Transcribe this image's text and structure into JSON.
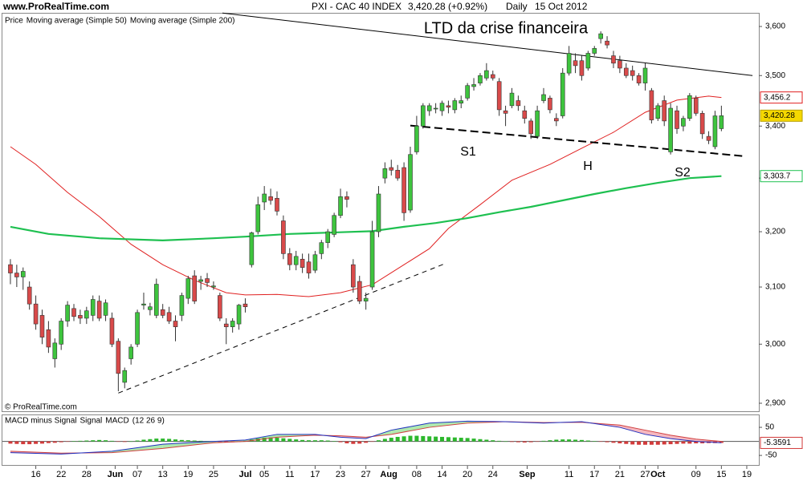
{
  "header": {
    "site": "www.ProRealTime.com",
    "instrument": "PXI - CAC 40 INDEX",
    "quote": "3,420.28 (+0.92%)",
    "period": "Daily",
    "date": "15 Oct 2012"
  },
  "copyright": "© ProRealTime.com",
  "chart_data": [
    {
      "type": "candlestick",
      "legend_title": "Price",
      "log_scale": true,
      "xlim": [
        -1.26,
        117.9
      ],
      "ylim": [
        2888,
        3630
      ],
      "yticks": [
        {
          "value": 3600,
          "label": "3,600"
        },
        {
          "value": 3500,
          "label": "3,500"
        },
        {
          "value": 3400,
          "label": "3,400"
        },
        {
          "value": 3300,
          "label": "3,300"
        },
        {
          "value": 3200,
          "label": "3,200"
        },
        {
          "value": 3100,
          "label": "3,100"
        },
        {
          "value": 3000,
          "label": "3,000"
        },
        {
          "value": 2900,
          "label": "2,900"
        }
      ],
      "xticks": [
        {
          "value": 4,
          "label": "16"
        },
        {
          "value": 8,
          "label": "22"
        },
        {
          "value": 12,
          "label": "28"
        },
        {
          "value": 16.5,
          "label": "Jun"
        },
        {
          "value": 20,
          "label": "07"
        },
        {
          "value": 24,
          "label": "13"
        },
        {
          "value": 28,
          "label": "19"
        },
        {
          "value": 32,
          "label": "25"
        },
        {
          "value": 37,
          "label": "Jul"
        },
        {
          "value": 40,
          "label": "05"
        },
        {
          "value": 44,
          "label": "11"
        },
        {
          "value": 48,
          "label": "17"
        },
        {
          "value": 52,
          "label": "23"
        },
        {
          "value": 56,
          "label": "27"
        },
        {
          "value": 59.6,
          "label": "Aug"
        },
        {
          "value": 64,
          "label": "08"
        },
        {
          "value": 68,
          "label": "14"
        },
        {
          "value": 72,
          "label": "20"
        },
        {
          "value": 76,
          "label": "24"
        },
        {
          "value": 81.4,
          "label": "Sep"
        },
        {
          "value": 88,
          "label": "11"
        },
        {
          "value": 92,
          "label": "17"
        },
        {
          "value": 96,
          "label": "21"
        },
        {
          "value": 100,
          "label": "27"
        },
        {
          "value": 102,
          "label": "Oct"
        },
        {
          "value": 108,
          "label": "09"
        },
        {
          "value": 112,
          "label": "15"
        },
        {
          "value": 116,
          "label": "19"
        }
      ],
      "up_color": "#3ec43e",
      "down_color": "#d94a4a",
      "open": [
        3140,
        3125,
        3118,
        3100,
        3070,
        3050,
        3025,
        2975,
        3000,
        3040,
        3062,
        3050,
        3045,
        3050,
        3075,
        3050,
        3045,
        3005,
        2935,
        2975,
        3000,
        3068,
        3060,
        3050,
        3060,
        3055,
        3040,
        3050,
        3080,
        3120,
        3110,
        3115,
        3100,
        3085,
        3035,
        3030,
        3035,
        3070,
        3140,
        3200,
        3255,
        3265,
        3262,
        3220,
        3160,
        3140,
        3150,
        3145,
        3130,
        3160,
        3180,
        3195,
        3230,
        3265,
        3140,
        3110,
        3075,
        3100,
        3200,
        3300,
        3320,
        3315,
        3320,
        3240,
        3350,
        3400,
        3430,
        3435,
        3430,
        3440,
        3432,
        3445,
        3455,
        3478,
        3485,
        3495,
        3502,
        3488,
        3430,
        3440,
        3450,
        3430,
        3410,
        3380,
        3450,
        3455,
        3415,
        3420,
        3505,
        3530,
        3530,
        3515,
        3545,
        3575,
        3570,
        3540,
        3530,
        3515,
        3510,
        3500,
        3485,
        3470,
        3415,
        3450,
        3350,
        3430,
        3400,
        3415,
        3455,
        3425,
        3380,
        3360,
        3395
      ],
      "high": [
        3150,
        3140,
        3135,
        3110,
        3085,
        3060,
        3040,
        3010,
        3045,
        3075,
        3070,
        3060,
        3065,
        3085,
        3085,
        3078,
        3055,
        3010,
        2960,
        3000,
        3060,
        3090,
        3072,
        3115,
        3070,
        3065,
        3050,
        3090,
        3120,
        3130,
        3120,
        3125,
        3110,
        3090,
        3045,
        3045,
        3070,
        3080,
        3200,
        3265,
        3285,
        3280,
        3275,
        3230,
        3170,
        3165,
        3160,
        3160,
        3165,
        3185,
        3205,
        3235,
        3280,
        3275,
        3150,
        3120,
        3090,
        3220,
        3285,
        3330,
        3335,
        3325,
        3330,
        3360,
        3420,
        3445,
        3445,
        3445,
        3450,
        3450,
        3455,
        3460,
        3485,
        3495,
        3505,
        3525,
        3510,
        3495,
        3440,
        3475,
        3460,
        3440,
        3415,
        3440,
        3475,
        3460,
        3425,
        3515,
        3560,
        3545,
        3540,
        3550,
        3560,
        3590,
        3580,
        3550,
        3540,
        3525,
        3520,
        3505,
        3525,
        3475,
        3445,
        3460,
        3445,
        3440,
        3420,
        3465,
        3460,
        3430,
        3390,
        3430,
        3440
      ],
      "low": [
        3105,
        3100,
        3095,
        3060,
        3025,
        3000,
        2985,
        2960,
        2990,
        3030,
        3040,
        3035,
        3035,
        3040,
        3040,
        3040,
        2995,
        2920,
        2925,
        2965,
        2995,
        3060,
        3050,
        3045,
        3045,
        3035,
        3005,
        3040,
        3070,
        3070,
        3095,
        3100,
        3095,
        3040,
        3000,
        3020,
        3025,
        3055,
        3135,
        3195,
        3240,
        3250,
        3230,
        3150,
        3130,
        3130,
        3125,
        3115,
        3125,
        3150,
        3170,
        3190,
        3225,
        3245,
        3090,
        3070,
        3060,
        3095,
        3190,
        3290,
        3305,
        3295,
        3220,
        3235,
        3345,
        3395,
        3420,
        3425,
        3420,
        3425,
        3425,
        3435,
        3450,
        3470,
        3480,
        3490,
        3490,
        3420,
        3400,
        3435,
        3430,
        3405,
        3375,
        3375,
        3445,
        3425,
        3400,
        3415,
        3500,
        3505,
        3490,
        3510,
        3540,
        3565,
        3555,
        3515,
        3505,
        3495,
        3490,
        3480,
        3470,
        3405,
        3410,
        3400,
        3345,
        3385,
        3390,
        3410,
        3420,
        3375,
        3365,
        3355,
        3390
      ],
      "close": [
        3125,
        3118,
        3128,
        3070,
        3035,
        3012,
        2995,
        3002,
        3040,
        3068,
        3048,
        3045,
        3058,
        3078,
        3045,
        3072,
        3000,
        2950,
        2955,
        2995,
        3055,
        3070,
        3065,
        3105,
        3050,
        3040,
        3030,
        3085,
        3115,
        3075,
        3113,
        3108,
        3102,
        3045,
        3030,
        3040,
        3068,
        3065,
        3198,
        3250,
        3270,
        3258,
        3238,
        3160,
        3140,
        3155,
        3135,
        3125,
        3158,
        3180,
        3200,
        3230,
        3265,
        3260,
        3100,
        3075,
        3080,
        3200,
        3270,
        3318,
        3315,
        3300,
        3235,
        3345,
        3400,
        3440,
        3440,
        3435,
        3445,
        3437,
        3450,
        3450,
        3480,
        3482,
        3500,
        3510,
        3495,
        3432,
        3425,
        3465,
        3440,
        3415,
        3385,
        3430,
        3462,
        3432,
        3410,
        3505,
        3545,
        3520,
        3500,
        3545,
        3555,
        3585,
        3562,
        3525,
        3515,
        3500,
        3500,
        3485,
        3515,
        3412,
        3440,
        3410,
        3435,
        3395,
        3415,
        3460,
        3425,
        3385,
        3372,
        3420,
        3420.28
      ],
      "close_label": "3,420.28",
      "series": [
        {
          "name": "Moving average (Simple 50)",
          "color": "#e02020",
          "x": [
            0,
            4,
            9,
            14,
            19,
            24,
            29,
            34,
            37,
            42,
            47,
            52,
            57,
            62,
            66,
            69,
            74,
            79,
            85,
            90,
            95,
            100,
            105,
            110,
            112
          ],
          "values": [
            3360,
            3326,
            3273,
            3228,
            3177,
            3140,
            3112,
            3090,
            3086,
            3087,
            3083,
            3090,
            3104,
            3140,
            3169,
            3206,
            3250,
            3296,
            3326,
            3357,
            3388,
            3427,
            3451,
            3459,
            3456.2
          ],
          "value_label": "3,456.2"
        },
        {
          "name": "Moving average (Simple 200)",
          "color": "#1ec050",
          "x": [
            0,
            6,
            14,
            24,
            32,
            37,
            44,
            52,
            57,
            62,
            67,
            72,
            77,
            82,
            87,
            92,
            97,
            102,
            107,
            112
          ],
          "values": [
            3209,
            3196,
            3188,
            3184,
            3188,
            3191,
            3196,
            3199,
            3201,
            3209,
            3216,
            3225,
            3236,
            3246,
            3258,
            3270,
            3281,
            3291,
            3300,
            3303.7
          ],
          "value_label": "3,303.7"
        }
      ],
      "trendlines": [
        {
          "x": [
            33.4,
            116.9
          ],
          "y": [
            3628,
            3500
          ],
          "style": "solid"
        },
        {
          "x": [
            63,
            115.4
          ],
          "y": [
            3401,
            3342
          ],
          "style": "dashed"
        },
        {
          "x": [
            17,
            68.7
          ],
          "y": [
            2917,
            3143
          ],
          "style": "dashed"
        }
      ],
      "annotations": [
        "LTD da crise financeira",
        "S1",
        "H",
        "S2"
      ]
    },
    {
      "type": "macd",
      "params": "(12 26 9)",
      "xlim": [
        -1.26,
        117.9
      ],
      "ylim": [
        -84,
        93
      ],
      "yticks": [
        50,
        -50
      ],
      "histogram": {
        "name": "MACD minus Signal",
        "pos_color": "#2db82d",
        "neg_color": "#d23a3a",
        "values": [
          -8,
          -9,
          -10,
          -10,
          -9,
          -8,
          -6,
          -5,
          -3,
          -1,
          1,
          2,
          3,
          4,
          5,
          4,
          2,
          -1,
          -2,
          0,
          3,
          6,
          8,
          10,
          10,
          9,
          7,
          5,
          4,
          3,
          2,
          1,
          -1,
          -2,
          -3,
          -3,
          -2,
          2,
          6,
          10,
          13,
          14,
          13,
          11,
          9,
          7,
          5,
          4,
          4,
          4,
          3,
          1,
          -3,
          -7,
          -9,
          -8,
          -5,
          -1,
          4,
          9,
          13,
          16,
          18,
          20,
          20,
          19,
          18,
          17,
          16,
          15,
          14,
          13,
          12,
          10,
          8,
          6,
          4,
          2,
          0,
          -2,
          -3,
          -4,
          -3,
          -1,
          2,
          4,
          6,
          7,
          7,
          6,
          5,
          3,
          1,
          -1,
          -3,
          -5,
          -7,
          -9,
          -11,
          -12,
          -12,
          -12,
          -12,
          -11,
          -10,
          -9,
          -8,
          -8,
          -7,
          -7,
          -6,
          -6,
          -5.3591
        ],
        "value_label": "-5.3591"
      },
      "series": [
        {
          "name": "Signal",
          "color": "#d04040",
          "x": [
            0,
            8,
            16,
            24,
            32,
            37,
            42,
            48,
            52,
            56,
            60,
            66,
            72,
            78,
            84,
            90,
            96,
            100,
            104,
            108,
            112
          ],
          "values": [
            -35,
            -42,
            -40,
            -25,
            -5,
            0,
            15,
            22,
            20,
            15,
            25,
            50,
            65,
            70,
            67,
            68,
            58,
            40,
            22,
            8,
            0
          ]
        },
        {
          "name": "MACD",
          "color": "#2030c0",
          "x": [
            0,
            8,
            16,
            24,
            32,
            37,
            42,
            48,
            52,
            56,
            60,
            66,
            72,
            78,
            84,
            90,
            96,
            100,
            104,
            108,
            112
          ],
          "values": [
            -40,
            -45,
            -35,
            -10,
            0,
            5,
            25,
            25,
            15,
            10,
            40,
            65,
            72,
            70,
            65,
            70,
            50,
            25,
            10,
            0,
            -5
          ]
        }
      ]
    }
  ]
}
